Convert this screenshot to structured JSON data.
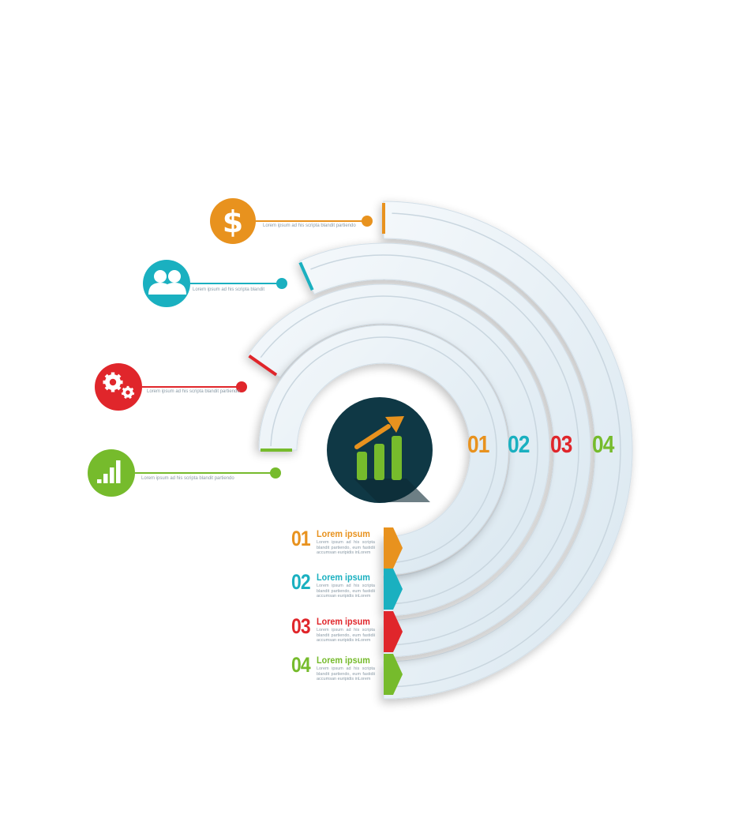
{
  "colors": {
    "orange": "#e8921e",
    "teal": "#1ab0c0",
    "red": "#e0262b",
    "green": "#76bb2c",
    "arc_face": "#e8f1f7",
    "center_disc": "#0f3845"
  },
  "icons": [
    {
      "name": "dollar-icon",
      "color": "orange",
      "caption": "Lorem ipsum ad his scripta blandit partiendo"
    },
    {
      "name": "users-icon",
      "color": "teal",
      "caption": "Lorem ipsum ad his scripta blandit"
    },
    {
      "name": "gears-icon",
      "color": "red",
      "caption": "Lorem ipsum ad his scripta blandit partiendo"
    },
    {
      "name": "bar-chart-icon",
      "color": "green",
      "caption": "Lorem ipsum ad his scripta blandit partiendo"
    }
  ],
  "arc_numbers": [
    "01",
    "02",
    "03",
    "04"
  ],
  "legend": [
    {
      "num": "01",
      "title": "Lorem ipsum",
      "desc": "Lorem ipsum ad his scripta blandit partiendo, eum fastidii accumsan euripidis inLorem"
    },
    {
      "num": "02",
      "title": "Lorem ipsum",
      "desc": "Lorem ipsum ad his scripta blandit partiendo, eum fastidii accumsan euripidis inLorem"
    },
    {
      "num": "03",
      "title": "Lorem ipsum",
      "desc": "Lorem ipsum ad his scripta blandit partiendo, eum fastidii accumsan euripidis inLorem"
    },
    {
      "num": "04",
      "title": "Lorem ipsum",
      "desc": "Lorem ipsum ad his scripta blandit partiendo, eum fastidii accumsan euripidis inLorem"
    }
  ],
  "center_icon": "growth-chart-icon"
}
